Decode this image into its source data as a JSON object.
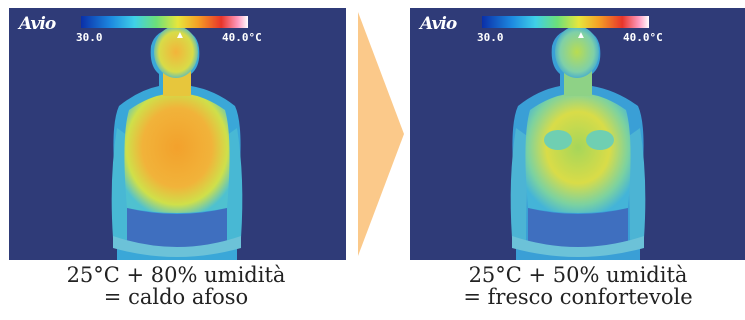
{
  "panels": [
    {
      "brand": "Avio",
      "scale_min": "30.0",
      "scale_max": "40.0°C",
      "caption_line1": "25°C + 80% umidità",
      "caption_line2": "= caldo afoso"
    },
    {
      "brand": "Avio",
      "scale_min": "30.0",
      "scale_max": "40.0°C",
      "caption_line1": "25°C + 50% umidità",
      "caption_line2": "= fresco confortevole"
    }
  ],
  "colors": {
    "background": "#2f3b78",
    "arrow": "#fbc98a",
    "warm_body": "#f0a432",
    "cool_body": "#8fd46a"
  }
}
